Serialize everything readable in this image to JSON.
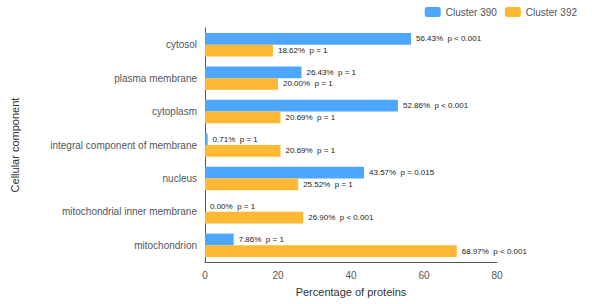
{
  "chart_data": {
    "type": "bar",
    "orientation": "horizontal",
    "categories": [
      "mitochondrion",
      "mitochondrial inner membrane",
      "nucleus",
      "integral component of membrane",
      "cytoplasm",
      "plasma membrane",
      "cytosol"
    ],
    "series": [
      {
        "name": "Cluster 390",
        "color": "#4da6ff",
        "values": [
          7.86,
          0.0,
          43.57,
          0.71,
          52.86,
          26.43,
          56.43
        ],
        "value_labels": [
          "7.86%  p = 1",
          "0.00%  p = 1",
          "43.57%  p = 0.015",
          "0.71%  p = 1",
          "52.86%  p < 0.001",
          "26.43%  p = 1",
          "56.43%  p < 0.001"
        ]
      },
      {
        "name": "Cluster 392",
        "color": "#ffb833",
        "values": [
          68.97,
          26.9,
          25.52,
          20.69,
          20.69,
          20.0,
          18.62
        ],
        "value_labels": [
          "68.97%  p < 0.001",
          "26.90%  p < 0.001",
          "25.52%  p = 1",
          "20.69%  p = 1",
          "20.69%  p = 1",
          "20.00%  p = 1",
          "18.62%  p = 1"
        ]
      }
    ],
    "xlabel": "Percentage of proteins",
    "ylabel": "Cellular component",
    "xlim": [
      0,
      80
    ],
    "xticks": [
      0,
      20,
      40,
      60,
      80
    ],
    "data_labels": true,
    "legend": "upper right",
    "grid": false
  }
}
